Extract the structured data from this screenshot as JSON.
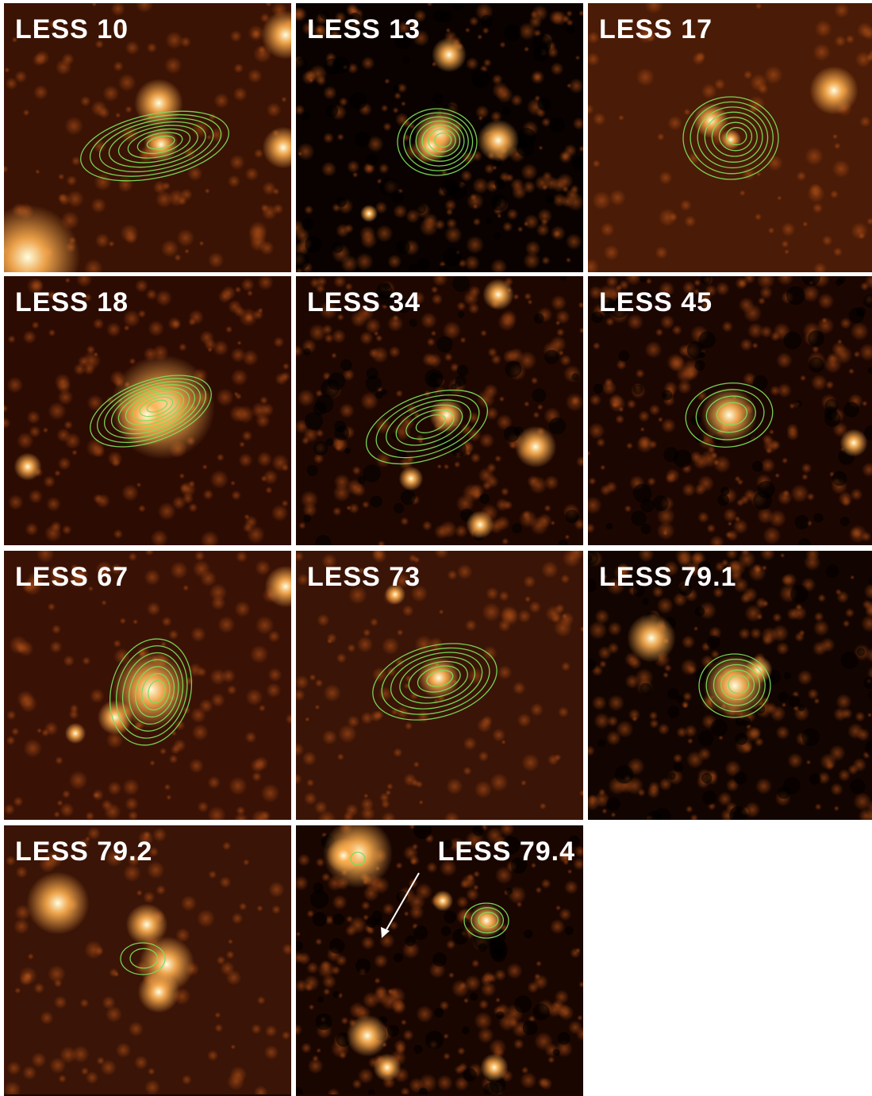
{
  "panels": [
    {
      "label": "LESS 10"
    },
    {
      "label": "LESS 13"
    },
    {
      "label": "LESS 17"
    },
    {
      "label": "LESS 18"
    },
    {
      "label": "LESS 34"
    },
    {
      "label": "LESS 45"
    },
    {
      "label": "LESS 67"
    },
    {
      "label": "LESS 73"
    },
    {
      "label": "LESS 79.1"
    },
    {
      "label": "LESS 79.2"
    },
    {
      "label": "LESS 79.4"
    }
  ],
  "colors": {
    "background_field": "#2a0c02",
    "source_glow": "#ffb050",
    "source_core": "#ffffe0",
    "contour": "#7ddc5a",
    "label_text": "#ffffff",
    "separator": "#ffffff"
  }
}
